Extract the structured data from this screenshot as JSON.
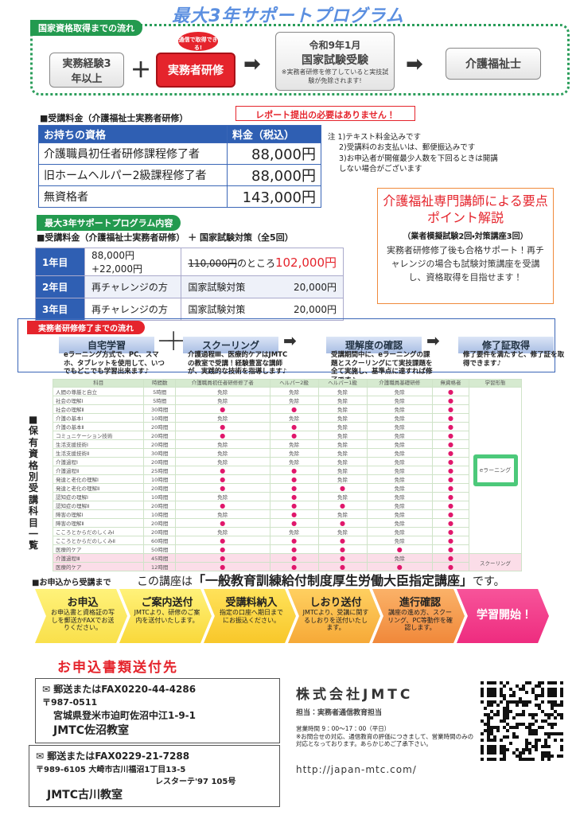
{
  "header": {
    "title": "最大3年サポートプログラム"
  },
  "flow": {
    "label": "国家資格取得までの流れ",
    "experience": "実務経験3年以上",
    "badge": "通信で取得できる!",
    "training": "実務者研修",
    "exam_date": "令和9年1月",
    "exam": "国家試験受験",
    "exam_note": "※実務者研修を修了していると実技試験が免除されます!",
    "goal": "介護福祉士",
    "callout": "レポート提出の必要はありません！"
  },
  "fee": {
    "heading": "■受講料金（介護福祉士実務者研修）",
    "columns": [
      "お持ちの資格",
      "料金（税込）"
    ],
    "rows": [
      [
        "介護職員初任者研修課程修了者",
        "88,000円"
      ],
      [
        "旧ホームヘルパー2級課程修了者",
        "88,000円"
      ],
      [
        "無資格者",
        "143,000円"
      ]
    ],
    "notes": [
      "注 1)テキスト料金込みです",
      "2)受講料のお支払いは、郵便振込みです",
      "3)お申込者が開催最少人数を下回るときは開講しない場合がございます"
    ]
  },
  "lecture": {
    "title": "介護福祉専門講師による要点ポイント解説",
    "subtitle": "（業者模擬試験2回・対策講座3回）",
    "body": "実務者研修修了後も合格サポート！再チャレンジの場合も試験対策講座を受講し、資格取得を目指せます！"
  },
  "program": {
    "label": "最大3年サポートプログラム内容",
    "heading": "■受講料金（介護福祉士実務者研修） ＋ 国家試験対策（全5回）",
    "first": {
      "year": "1年目",
      "fee": "88,000円+22,000円",
      "old_price": "110,000円",
      "connector": "のところ",
      "price": "102,000円"
    },
    "rows": [
      {
        "year": "2年目",
        "fee": "再チャレンジの方",
        "item": "国家試験対策",
        "price": "20,000円"
      },
      {
        "year": "3年目",
        "fee": "再チャレンジの方",
        "item": "国家試験対策",
        "price": "20,000円"
      }
    ]
  },
  "training": {
    "label": "実務者研修修了までの流れ",
    "steps": [
      {
        "title": "自宅学習",
        "text": "eラーニング方式で、PC、スマホ、タブレットを使用して、いつでもどこでも学習出来ます♪"
      },
      {
        "title": "スクーリング",
        "text": "介護過程Ⅲ、医療的ケアはJMTCの教室で受講！経験豊富な講師が、実践的な技術を指導します♪"
      },
      {
        "title": "理解度の確認",
        "text": "受講期間中に、eラーニングの課題とスクーリングにて実技課題を全て実施し、基準点に達すれば修了です♪"
      },
      {
        "title": "修了証取得",
        "text": "修了要件を満たすと、修了証を取得できます♪"
      }
    ]
  },
  "subjects": {
    "label": "■保有資格別受講科目一覧",
    "columns": [
      "科目",
      "時間数",
      "介護職員初任者研修修了者",
      "ヘルパー2級",
      "ヘルパー1級",
      "介護職員基礎研修",
      "無資格者",
      "学習形態"
    ],
    "modes": [
      "eラーニング",
      "スクーリング"
    ],
    "rows": [
      [
        "人間の尊厳と自立",
        "5時間",
        "免除",
        "免除",
        "免除",
        "免除",
        "●"
      ],
      [
        "社会の理解Ⅰ",
        "5時間",
        "免除",
        "免除",
        "免除",
        "免除",
        "●"
      ],
      [
        "社会の理解Ⅱ",
        "30時間",
        "●",
        "●",
        "免除",
        "免除",
        "●"
      ],
      [
        "介護の基本Ⅰ",
        "10時間",
        "免除",
        "免除",
        "免除",
        "免除",
        "●"
      ],
      [
        "介護の基本Ⅱ",
        "20時間",
        "●",
        "●",
        "免除",
        "免除",
        "●"
      ],
      [
        "コミュニケーション技術",
        "20時間",
        "●",
        "●",
        "免除",
        "免除",
        "●"
      ],
      [
        "生活支援技術Ⅰ",
        "20時間",
        "免除",
        "免除",
        "免除",
        "免除",
        "●"
      ],
      [
        "生活支援技術Ⅱ",
        "30時間",
        "免除",
        "免除",
        "免除",
        "免除",
        "●"
      ],
      [
        "介護過程Ⅰ",
        "20時間",
        "免除",
        "免除",
        "免除",
        "免除",
        "●"
      ],
      [
        "介護過程Ⅱ",
        "25時間",
        "●",
        "●",
        "免除",
        "免除",
        "●"
      ],
      [
        "発達と老化の理解Ⅰ",
        "10時間",
        "●",
        "●",
        "免除",
        "免除",
        "●"
      ],
      [
        "発達と老化の理解Ⅱ",
        "20時間",
        "●",
        "●",
        "●",
        "免除",
        "●"
      ],
      [
        "認知症の理解Ⅰ",
        "10時間",
        "免除",
        "●",
        "免除",
        "免除",
        "●"
      ],
      [
        "認知症の理解Ⅱ",
        "20時間",
        "●",
        "●",
        "●",
        "免除",
        "●"
      ],
      [
        "障害の理解Ⅰ",
        "10時間",
        "免除",
        "●",
        "免除",
        "免除",
        "●"
      ],
      [
        "障害の理解Ⅱ",
        "20時間",
        "●",
        "●",
        "●",
        "免除",
        "●"
      ],
      [
        "こころとからだのしくみⅠ",
        "20時間",
        "免除",
        "免除",
        "免除",
        "免除",
        "●"
      ],
      [
        "こころとからだのしくみⅡ",
        "60時間",
        "●",
        "●",
        "●",
        "免除",
        "●"
      ],
      [
        "医療的ケア",
        "50時間",
        "●",
        "●",
        "●",
        "●",
        "●"
      ],
      [
        "介護過程Ⅲ",
        "45時間",
        "●",
        "●",
        "●",
        "免除",
        "●"
      ],
      [
        "医療的ケア",
        "12時間",
        "●",
        "●",
        "●",
        "●",
        "●"
      ]
    ]
  },
  "application": {
    "heading": "■お申込から受講まで",
    "statement_prefix": "この講座は",
    "statement_main": "「一般教育訓練給付制度厚生労働大臣指定講座」",
    "statement_suffix": "です。",
    "steps": [
      {
        "title": "お申込",
        "text": "お申込書と資格証の写しを郵送かFAXでお送りください。"
      },
      {
        "title": "ご案内送付",
        "text": "JMTCより、研修のご案内を送付いたします。"
      },
      {
        "title": "受講料納入",
        "text": "指定の口座へ期日までにお振込ください。"
      },
      {
        "title": "しおり送付",
        "text": "JMTCより、受講に関するしおりを送付いたします。"
      },
      {
        "title": "進行確認",
        "text": "講座の進め方、スクーリング、PC等動作を確認します。"
      },
      {
        "title": "学習開始！"
      }
    ]
  },
  "contact": {
    "title": "お申込書類送付先",
    "offices": [
      {
        "line": "郵送またはFAX0220-44-4286",
        "postal": "〒987-0511",
        "address": "宮城県登米市迫町佐沼中江1-9-1",
        "name": "JMTC佐沼教室"
      },
      {
        "line": "郵送またはFAX0229-21-7288",
        "postal": "〒989-6105 大崎市古川福沼1丁目13-5",
        "address": "レスターテ'97 105号",
        "name": "JMTC古川教室"
      }
    ],
    "company": "株式会社JMTC",
    "person": "担当：実務者通信教育担当",
    "hours": "営業時間 9：00～17：00（平日）",
    "hours_note": "※お問合せの対応、通信教育の評価につきまして、営業時間のみの対応となっております。あらかじめご了承下さい。",
    "url": "http://japan-mtc.com/"
  }
}
